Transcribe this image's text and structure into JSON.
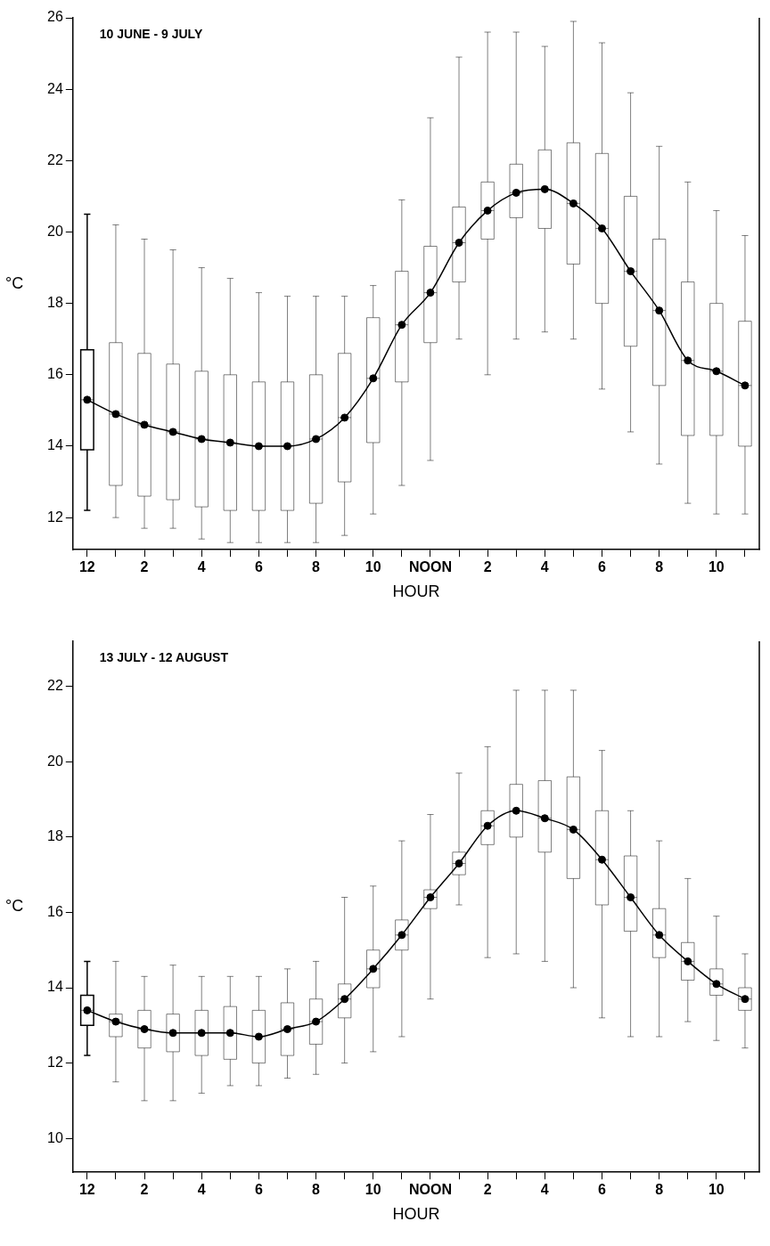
{
  "chart_data": [
    {
      "type": "box",
      "title": "10 JUNE - 9 JULY",
      "xlabel": "HOUR",
      "ylabel": "°C",
      "categories": [
        "12",
        null,
        "2",
        null,
        "4",
        null,
        "6",
        null,
        "8",
        null,
        "10",
        null,
        "NOON",
        null,
        "2",
        null,
        "4",
        null,
        "6",
        null,
        "8",
        null,
        "10",
        null
      ],
      "ylim": [
        11.1,
        26
      ],
      "yticks": [
        12,
        14,
        16,
        18,
        20,
        22,
        24,
        26
      ],
      "boxes": [
        {
          "low": 12.2,
          "q1": 13.9,
          "median": 15.3,
          "q3": 16.7,
          "high": 20.5
        },
        {
          "low": 12.0,
          "q1": 12.9,
          "median": 14.9,
          "q3": 16.9,
          "high": 20.2
        },
        {
          "low": 11.7,
          "q1": 12.6,
          "median": 14.6,
          "q3": 16.6,
          "high": 19.8
        },
        {
          "low": 11.7,
          "q1": 12.5,
          "median": 14.4,
          "q3": 16.3,
          "high": 19.5
        },
        {
          "low": 11.4,
          "q1": 12.3,
          "median": 14.2,
          "q3": 16.1,
          "high": 19.0
        },
        {
          "low": 11.3,
          "q1": 12.2,
          "median": 14.1,
          "q3": 16.0,
          "high": 18.7
        },
        {
          "low": 11.3,
          "q1": 12.2,
          "median": 14.0,
          "q3": 15.8,
          "high": 18.3
        },
        {
          "low": 11.3,
          "q1": 12.2,
          "median": 14.0,
          "q3": 15.8,
          "high": 18.2
        },
        {
          "low": 11.3,
          "q1": 12.4,
          "median": 14.2,
          "q3": 16.0,
          "high": 18.2
        },
        {
          "low": 11.5,
          "q1": 13.0,
          "median": 14.8,
          "q3": 16.6,
          "high": 18.2
        },
        {
          "low": 12.1,
          "q1": 14.1,
          "median": 15.9,
          "q3": 17.6,
          "high": 18.5
        },
        {
          "low": 12.9,
          "q1": 15.8,
          "median": 17.4,
          "q3": 18.9,
          "high": 20.9
        },
        {
          "low": 13.6,
          "q1": 16.9,
          "median": 18.3,
          "q3": 19.6,
          "high": 23.2
        },
        {
          "low": 17.0,
          "q1": 18.6,
          "median": 19.7,
          "q3": 20.7,
          "high": 24.9
        },
        {
          "low": 16.0,
          "q1": 19.8,
          "median": 20.6,
          "q3": 21.4,
          "high": 25.6
        },
        {
          "low": 17.0,
          "q1": 20.4,
          "median": 21.1,
          "q3": 21.9,
          "high": 25.6
        },
        {
          "low": 17.2,
          "q1": 20.1,
          "median": 21.2,
          "q3": 22.3,
          "high": 25.2
        },
        {
          "low": 17.0,
          "q1": 19.1,
          "median": 20.8,
          "q3": 22.5,
          "high": 25.9
        },
        {
          "low": 15.6,
          "q1": 18.0,
          "median": 20.1,
          "q3": 22.2,
          "high": 25.3
        },
        {
          "low": 14.4,
          "q1": 16.8,
          "median": 18.9,
          "q3": 21.0,
          "high": 23.9
        },
        {
          "low": 13.5,
          "q1": 15.7,
          "median": 17.8,
          "q3": 19.8,
          "high": 22.4
        },
        {
          "low": 12.4,
          "q1": 14.3,
          "median": 16.4,
          "q3": 18.6,
          "high": 21.4
        },
        {
          "low": 12.1,
          "q1": 14.3,
          "median": 16.1,
          "q3": 18.0,
          "high": 20.6
        },
        {
          "low": 12.1,
          "q1": 14.0,
          "median": 15.7,
          "q3": 17.5,
          "high": 19.9
        }
      ],
      "series": [
        {
          "type": "line",
          "color": "#000000",
          "marker": "circle",
          "values": [
            15.3,
            14.9,
            14.6,
            14.4,
            14.2,
            14.1,
            14.0,
            14.0,
            14.2,
            14.8,
            15.9,
            17.4,
            18.3,
            19.7,
            20.6,
            21.1,
            21.2,
            20.8,
            20.1,
            18.9,
            17.8,
            16.4,
            16.1,
            15.7
          ]
        }
      ],
      "grid": false,
      "legend": false
    },
    {
      "type": "box",
      "title": "13 JULY - 12 AUGUST",
      "xlabel": "HOUR",
      "ylabel": "°C",
      "categories": [
        "12",
        null,
        "2",
        null,
        "4",
        null,
        "6",
        null,
        "8",
        null,
        "10",
        null,
        "NOON",
        null,
        "2",
        null,
        "4",
        null,
        "6",
        null,
        "8",
        null,
        "10",
        null
      ],
      "ylim": [
        9.1,
        23.2
      ],
      "yticks": [
        10,
        12,
        14,
        16,
        18,
        20,
        22
      ],
      "boxes": [
        {
          "low": 12.2,
          "q1": 13.0,
          "median": 13.4,
          "q3": 13.8,
          "high": 14.7
        },
        {
          "low": 11.5,
          "q1": 12.7,
          "median": 13.1,
          "q3": 13.3,
          "high": 14.7
        },
        {
          "low": 11.0,
          "q1": 12.4,
          "median": 12.9,
          "q3": 13.4,
          "high": 14.3
        },
        {
          "low": 11.0,
          "q1": 12.3,
          "median": 12.8,
          "q3": 13.3,
          "high": 14.6
        },
        {
          "low": 11.2,
          "q1": 12.2,
          "median": 12.8,
          "q3": 13.4,
          "high": 14.3
        },
        {
          "low": 11.4,
          "q1": 12.1,
          "median": 12.8,
          "q3": 13.5,
          "high": 14.3
        },
        {
          "low": 11.4,
          "q1": 12.0,
          "median": 12.7,
          "q3": 13.4,
          "high": 14.3
        },
        {
          "low": 11.6,
          "q1": 12.2,
          "median": 12.9,
          "q3": 13.6,
          "high": 14.5
        },
        {
          "low": 11.7,
          "q1": 12.5,
          "median": 13.1,
          "q3": 13.7,
          "high": 14.7
        },
        {
          "low": 12.0,
          "q1": 13.2,
          "median": 13.7,
          "q3": 14.1,
          "high": 16.4
        },
        {
          "low": 12.3,
          "q1": 14.0,
          "median": 14.5,
          "q3": 15.0,
          "high": 16.7
        },
        {
          "low": 12.7,
          "q1": 15.0,
          "median": 15.4,
          "q3": 15.8,
          "high": 17.9
        },
        {
          "low": 13.7,
          "q1": 16.1,
          "median": 16.4,
          "q3": 16.6,
          "high": 18.6
        },
        {
          "low": 16.2,
          "q1": 17.0,
          "median": 17.3,
          "q3": 17.6,
          "high": 19.7
        },
        {
          "low": 14.8,
          "q1": 17.8,
          "median": 18.3,
          "q3": 18.7,
          "high": 20.4
        },
        {
          "low": 14.9,
          "q1": 18.0,
          "median": 18.7,
          "q3": 19.4,
          "high": 21.9
        },
        {
          "low": 14.7,
          "q1": 17.6,
          "median": 18.5,
          "q3": 19.5,
          "high": 21.9
        },
        {
          "low": 14.0,
          "q1": 16.9,
          "median": 18.2,
          "q3": 19.6,
          "high": 21.9
        },
        {
          "low": 13.2,
          "q1": 16.2,
          "median": 17.4,
          "q3": 18.7,
          "high": 20.3
        },
        {
          "low": 12.7,
          "q1": 15.5,
          "median": 16.4,
          "q3": 17.5,
          "high": 18.7
        },
        {
          "low": 12.7,
          "q1": 14.8,
          "median": 15.4,
          "q3": 16.1,
          "high": 17.9
        },
        {
          "low": 13.1,
          "q1": 14.2,
          "median": 14.7,
          "q3": 15.2,
          "high": 16.9
        },
        {
          "low": 12.6,
          "q1": 13.8,
          "median": 14.1,
          "q3": 14.5,
          "high": 15.9
        },
        {
          "low": 12.4,
          "q1": 13.4,
          "median": 13.7,
          "q3": 14.0,
          "high": 14.9
        }
      ],
      "series": [
        {
          "type": "line",
          "color": "#000000",
          "marker": "circle",
          "values": [
            13.4,
            13.1,
            12.9,
            12.8,
            12.8,
            12.8,
            12.7,
            12.9,
            13.1,
            13.7,
            14.5,
            15.4,
            16.4,
            17.3,
            18.3,
            18.7,
            18.5,
            18.2,
            17.4,
            16.4,
            15.4,
            14.7,
            14.1,
            13.7
          ]
        }
      ],
      "grid": false,
      "legend": false
    }
  ]
}
